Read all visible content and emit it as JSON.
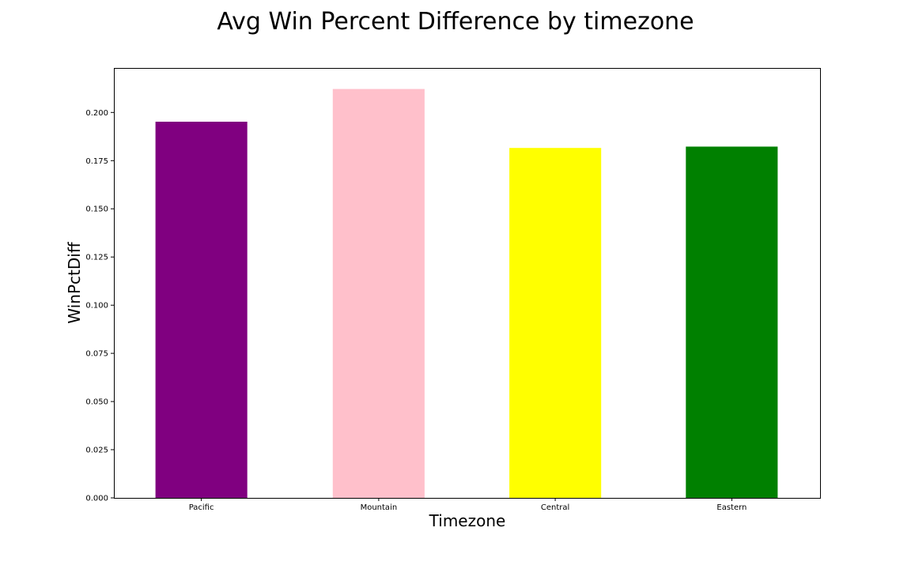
{
  "chart_data": {
    "type": "bar",
    "title": "Avg Win Percent Difference by timezone",
    "xlabel": "Timezone",
    "ylabel": "WinPctDiff",
    "categories": [
      "Pacific",
      "Mountain",
      "Central",
      "Eastern"
    ],
    "values": [
      0.1952,
      0.2122,
      0.1816,
      0.1823
    ],
    "colors": [
      "#800080",
      "#ffc0cb",
      "#ffff00",
      "#008000"
    ],
    "ylim": [
      0,
      0.2231
    ],
    "yticks": [
      "0.000",
      "0.025",
      "0.050",
      "0.075",
      "0.100",
      "0.125",
      "0.150",
      "0.175",
      "0.200"
    ],
    "grid": false,
    "legend": "none"
  }
}
